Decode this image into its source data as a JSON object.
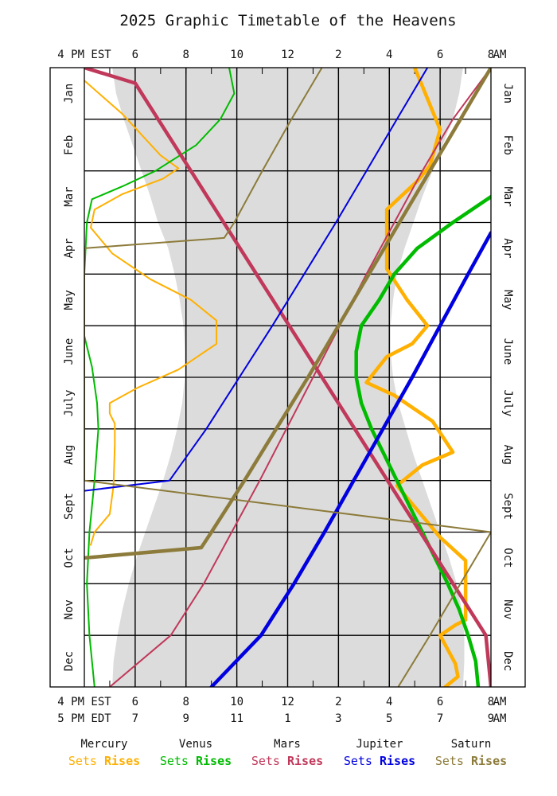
{
  "chart_data": {
    "type": "line",
    "title": "2025 Graphic Timetable of the Heavens",
    "x_axis": {
      "top_prefix": "4 PM EST",
      "top_suffix": "AM",
      "bottom_line1_prefix": "4 PM EST",
      "bottom_line1_suffix": "AM",
      "bottom_line2_prefix": "5 PM EDT",
      "bottom_line2_suffix": "AM",
      "hour_labels_est": [
        "6",
        "8",
        "10",
        "12",
        "2",
        "4",
        "6",
        "8"
      ],
      "hour_labels_edt": [
        "7",
        "9",
        "11",
        "1",
        "3",
        "5",
        "7",
        "9"
      ],
      "range_hours_after_4pm_est": [
        0,
        16
      ],
      "gridlines_every_hours": 1
    },
    "y_axis": {
      "months": [
        "Jan",
        "Feb",
        "Mar",
        "Apr",
        "May",
        "June",
        "July",
        "Aug",
        "Sept",
        "Oct",
        "Nov",
        "Dec"
      ],
      "range_month": [
        0,
        12
      ]
    },
    "night_band": {
      "color": "#dcdcdc",
      "dusk": [
        [
          0,
          1.1
        ],
        [
          0.5,
          1.25
        ],
        [
          1,
          1.55
        ],
        [
          1.5,
          1.9
        ],
        [
          2,
          2.25
        ],
        [
          2.5,
          2.6
        ],
        [
          3,
          2.9
        ],
        [
          3.5,
          3.3
        ],
        [
          4,
          3.55
        ],
        [
          4.5,
          3.75
        ],
        [
          5,
          3.9
        ],
        [
          5.5,
          3.95
        ],
        [
          6,
          3.95
        ],
        [
          6.5,
          3.85
        ],
        [
          7,
          3.65
        ],
        [
          7.5,
          3.4
        ],
        [
          8,
          3.1
        ],
        [
          8.5,
          2.75
        ],
        [
          9,
          2.4
        ],
        [
          9.5,
          2.05
        ],
        [
          10,
          1.75
        ],
        [
          10.5,
          1.5
        ],
        [
          11,
          1.3
        ],
        [
          11.5,
          1.15
        ],
        [
          12,
          1.1
        ]
      ],
      "dawn": [
        [
          0,
          14.9
        ],
        [
          0.5,
          14.75
        ],
        [
          1,
          14.5
        ],
        [
          1.5,
          14.1
        ],
        [
          2,
          13.7
        ],
        [
          2.5,
          13.3
        ],
        [
          3,
          12.95
        ],
        [
          3.5,
          12.6
        ],
        [
          4,
          12.3
        ],
        [
          4.5,
          12.15
        ],
        [
          5,
          12.05
        ],
        [
          5.5,
          12.05
        ],
        [
          6,
          12.15
        ],
        [
          6.5,
          12.35
        ],
        [
          7,
          12.65
        ],
        [
          7.5,
          12.95
        ],
        [
          8,
          13.3
        ],
        [
          8.5,
          13.65
        ],
        [
          9,
          14.0
        ],
        [
          9.5,
          14.35
        ],
        [
          10,
          14.65
        ],
        [
          10.5,
          14.85
        ],
        [
          11,
          14.95
        ],
        [
          11.5,
          14.95
        ],
        [
          12,
          14.9
        ]
      ]
    },
    "series": [
      {
        "name": "Mercury",
        "event": "Sets",
        "color": "#ffb000",
        "style": "thin",
        "points": [
          [
            0.25,
            0
          ],
          [
            0.9,
            1.5
          ],
          [
            1.7,
            3.0
          ],
          [
            1.95,
            3.7
          ],
          [
            2.15,
            3.1
          ],
          [
            2.45,
            1.5
          ],
          [
            2.75,
            0.4
          ],
          [
            3.1,
            0.25
          ],
          [
            3.6,
            1.1
          ],
          [
            4.1,
            2.6
          ],
          [
            4.5,
            4.2
          ],
          [
            4.9,
            5.2
          ],
          [
            5.35,
            5.2
          ],
          [
            5.85,
            3.7
          ],
          [
            6.2,
            2.1
          ],
          [
            6.5,
            1.0
          ],
          [
            6.7,
            1.0
          ],
          [
            6.9,
            1.2
          ],
          [
            7.3,
            1.2
          ],
          [
            8.1,
            1.15
          ],
          [
            8.65,
            1.0
          ],
          [
            9.0,
            0.4
          ],
          [
            9.25,
            0.25
          ]
        ]
      },
      {
        "name": "Mercury",
        "event": "Rises",
        "color": "#ffb000",
        "style": "thick",
        "points": [
          [
            0,
            13.0
          ],
          [
            0.6,
            13.5
          ],
          [
            1.2,
            14.0
          ],
          [
            1.9,
            13.6
          ],
          [
            2.2,
            13.1
          ],
          [
            2.75,
            11.9
          ],
          [
            3.2,
            11.9
          ],
          [
            3.9,
            11.9
          ],
          [
            4.5,
            12.7
          ],
          [
            5.0,
            13.5
          ],
          [
            5.35,
            12.9
          ],
          [
            5.6,
            11.9
          ],
          [
            6.1,
            11.1
          ],
          [
            6.35,
            12.2
          ],
          [
            6.85,
            13.7
          ],
          [
            7.45,
            14.5
          ],
          [
            7.7,
            13.3
          ],
          [
            8.1,
            12.3
          ],
          [
            9.1,
            14.0
          ],
          [
            9.55,
            15.0
          ],
          [
            10.1,
            15.0
          ],
          [
            10.7,
            15.0
          ],
          [
            10.8,
            14.6
          ],
          [
            11.0,
            14.0
          ],
          [
            11.55,
            14.6
          ],
          [
            11.8,
            14.7
          ],
          [
            12.0,
            14.2
          ]
        ]
      },
      {
        "name": "Venus",
        "event": "Sets",
        "color": "#00bb00",
        "style": "thin",
        "points": [
          [
            0,
            5.7
          ],
          [
            0.5,
            5.9
          ],
          [
            1.0,
            5.35
          ],
          [
            1.5,
            4.4
          ],
          [
            2.0,
            2.8
          ],
          [
            2.3,
            1.5
          ],
          [
            2.55,
            0.3
          ],
          [
            3.0,
            0.1
          ],
          [
            4.0,
            0
          ],
          [
            5.2,
            0
          ],
          [
            5.8,
            0.3
          ],
          [
            6.5,
            0.5
          ],
          [
            7.0,
            0.55
          ],
          [
            8.0,
            0.4
          ],
          [
            9.0,
            0.2
          ],
          [
            10.0,
            0.1
          ],
          [
            11.0,
            0.2
          ],
          [
            12.0,
            0.4
          ]
        ]
      },
      {
        "name": "Venus",
        "event": "Rises",
        "color": "#00bb00",
        "style": "thick",
        "points": [
          [
            2.5,
            16.0
          ],
          [
            3.0,
            14.5
          ],
          [
            3.5,
            13.1
          ],
          [
            4.0,
            12.2
          ],
          [
            4.5,
            11.6
          ],
          [
            5.0,
            10.9
          ],
          [
            5.5,
            10.7
          ],
          [
            6.0,
            10.7
          ],
          [
            6.5,
            10.9
          ],
          [
            7.0,
            11.3
          ],
          [
            7.5,
            11.8
          ],
          [
            8.0,
            12.3
          ],
          [
            8.5,
            12.8
          ],
          [
            9.0,
            13.3
          ],
          [
            9.5,
            13.8
          ],
          [
            10.0,
            14.3
          ],
          [
            10.5,
            14.75
          ],
          [
            11.0,
            15.1
          ],
          [
            11.5,
            15.4
          ],
          [
            12.0,
            15.5
          ]
        ]
      },
      {
        "name": "Mars",
        "event": "Sets",
        "color": "#c0385a",
        "style": "thin",
        "points": [
          [
            0,
            16.0
          ],
          [
            1.0,
            14.5
          ],
          [
            2.0,
            13.3
          ],
          [
            3.0,
            12.2
          ],
          [
            4.0,
            11.1
          ],
          [
            5.0,
            10.05
          ],
          [
            6.0,
            9.0
          ],
          [
            7.0,
            7.95
          ],
          [
            8.0,
            6.9
          ],
          [
            9.0,
            5.8
          ],
          [
            10.0,
            4.7
          ],
          [
            11.0,
            3.4
          ],
          [
            12.0,
            1.0
          ]
        ]
      },
      {
        "name": "Mars",
        "event": "Rises",
        "color": "#c0385a",
        "style": "thick",
        "points": [
          [
            0,
            0
          ],
          [
            0.3,
            2.0
          ],
          [
            11.0,
            15.8
          ],
          [
            11.5,
            15.9
          ],
          [
            12.0,
            16.0
          ]
        ]
      },
      {
        "name": "Jupiter",
        "event": "Sets",
        "color": "#0000e0",
        "style": "thin",
        "points": [
          [
            0,
            13.5
          ],
          [
            1.0,
            12.3
          ],
          [
            2.0,
            11.1
          ],
          [
            3.0,
            9.9
          ],
          [
            4.0,
            8.65
          ],
          [
            5.0,
            7.4
          ],
          [
            6.0,
            6.1
          ],
          [
            7.0,
            4.8
          ],
          [
            8.0,
            3.35
          ],
          [
            8.2,
            0.0
          ]
        ]
      },
      {
        "name": "Jupiter",
        "event": "Rises",
        "color": "#0000e0",
        "style": "thick",
        "points": [
          [
            3.2,
            16.0
          ],
          [
            4.0,
            15.1
          ],
          [
            5.0,
            14.0
          ],
          [
            6.0,
            12.9
          ],
          [
            7.0,
            11.75
          ],
          [
            8.0,
            10.6
          ],
          [
            9.0,
            9.45
          ],
          [
            10.0,
            8.25
          ],
          [
            11.0,
            6.95
          ],
          [
            12.0,
            5.0
          ]
        ]
      },
      {
        "name": "Saturn",
        "event": "Sets",
        "color": "#8c7b3a",
        "style": "thin",
        "points": [
          [
            0,
            9.35
          ],
          [
            1.0,
            8.15
          ],
          [
            2.0,
            7.0
          ],
          [
            3.0,
            5.9
          ],
          [
            3.3,
            5.5
          ],
          [
            3.5,
            0.0
          ],
          [
            4.0,
            0
          ],
          [
            6.0,
            0
          ],
          [
            8.0,
            0
          ],
          [
            9.0,
            16.0
          ],
          [
            10.0,
            14.8
          ],
          [
            11.0,
            13.6
          ],
          [
            12.0,
            12.35
          ]
        ]
      },
      {
        "name": "Saturn",
        "event": "Rises",
        "color": "#8c7b3a",
        "style": "thick",
        "points": [
          [
            0,
            16.0
          ],
          [
            1.0,
            14.8
          ],
          [
            2.0,
            13.6
          ],
          [
            3.0,
            12.4
          ],
          [
            4.0,
            11.2
          ],
          [
            5.0,
            10.0
          ],
          [
            6.0,
            8.8
          ],
          [
            7.0,
            7.55
          ],
          [
            8.0,
            6.3
          ],
          [
            9.0,
            5.0
          ],
          [
            9.3,
            4.6
          ],
          [
            9.5,
            0.0
          ]
        ]
      }
    ],
    "legend": {
      "placement": "bottom",
      "planets": [
        {
          "name": "Mercury",
          "color": "#ffb000"
        },
        {
          "name": "Venus",
          "color": "#00bb00"
        },
        {
          "name": "Mars",
          "color": "#c0385a"
        },
        {
          "name": "Jupiter",
          "color": "#0000e0"
        },
        {
          "name": "Saturn",
          "color": "#8c7b3a"
        }
      ],
      "sets_label": "Sets",
      "rises_label": "Rises"
    }
  }
}
